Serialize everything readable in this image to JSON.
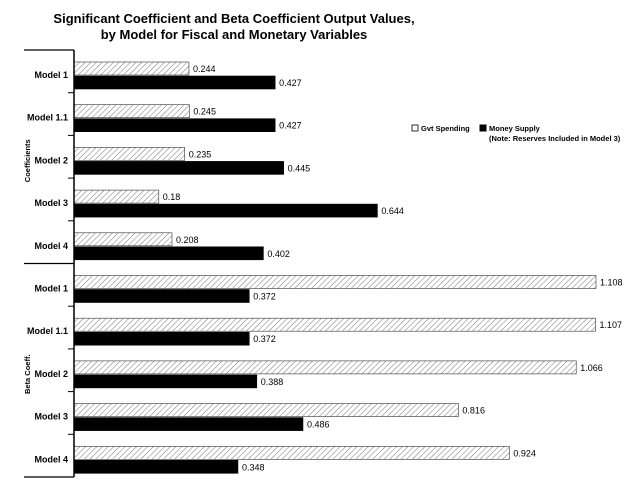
{
  "chart_data": {
    "type": "bar",
    "orientation": "horizontal",
    "title": "Significant Coefficient and Beta Coefficient Output Values,",
    "subtitle": "by Model for Fiscal and Monetary Variables",
    "groups": [
      {
        "name": "Coefficients",
        "categories": [
          "Model 1",
          "Model 1.1",
          "Model 2",
          "Model 3",
          "Model 4"
        ],
        "series": [
          {
            "name": "Gvt Spending",
            "values": [
              0.244,
              0.245,
              0.235,
              0.18,
              0.208
            ]
          },
          {
            "name": "Money Supply",
            "values": [
              0.427,
              0.427,
              0.445,
              0.644,
              0.402
            ]
          }
        ]
      },
      {
        "name": "Beta Coeff.",
        "categories": [
          "Model 1",
          "Model 1.1",
          "Model 2",
          "Model 3",
          "Model 4"
        ],
        "series": [
          {
            "name": "Gvt Spending",
            "values": [
              1.108,
              1.107,
              1.066,
              0.816,
              0.924
            ]
          },
          {
            "name": "Money Supply",
            "values": [
              0.372,
              0.372,
              0.388,
              0.486,
              0.348
            ]
          }
        ]
      }
    ],
    "xlim": [
      0,
      1.108
    ],
    "grid": false,
    "legend": {
      "position": "right",
      "entries": [
        "Gvt Spending",
        "Money Supply"
      ],
      "note": "(Note: Reserves Included in Model 3)"
    },
    "colors": {
      "Gvt Spending": "hatched-white",
      "Money Supply": "#000000"
    }
  }
}
